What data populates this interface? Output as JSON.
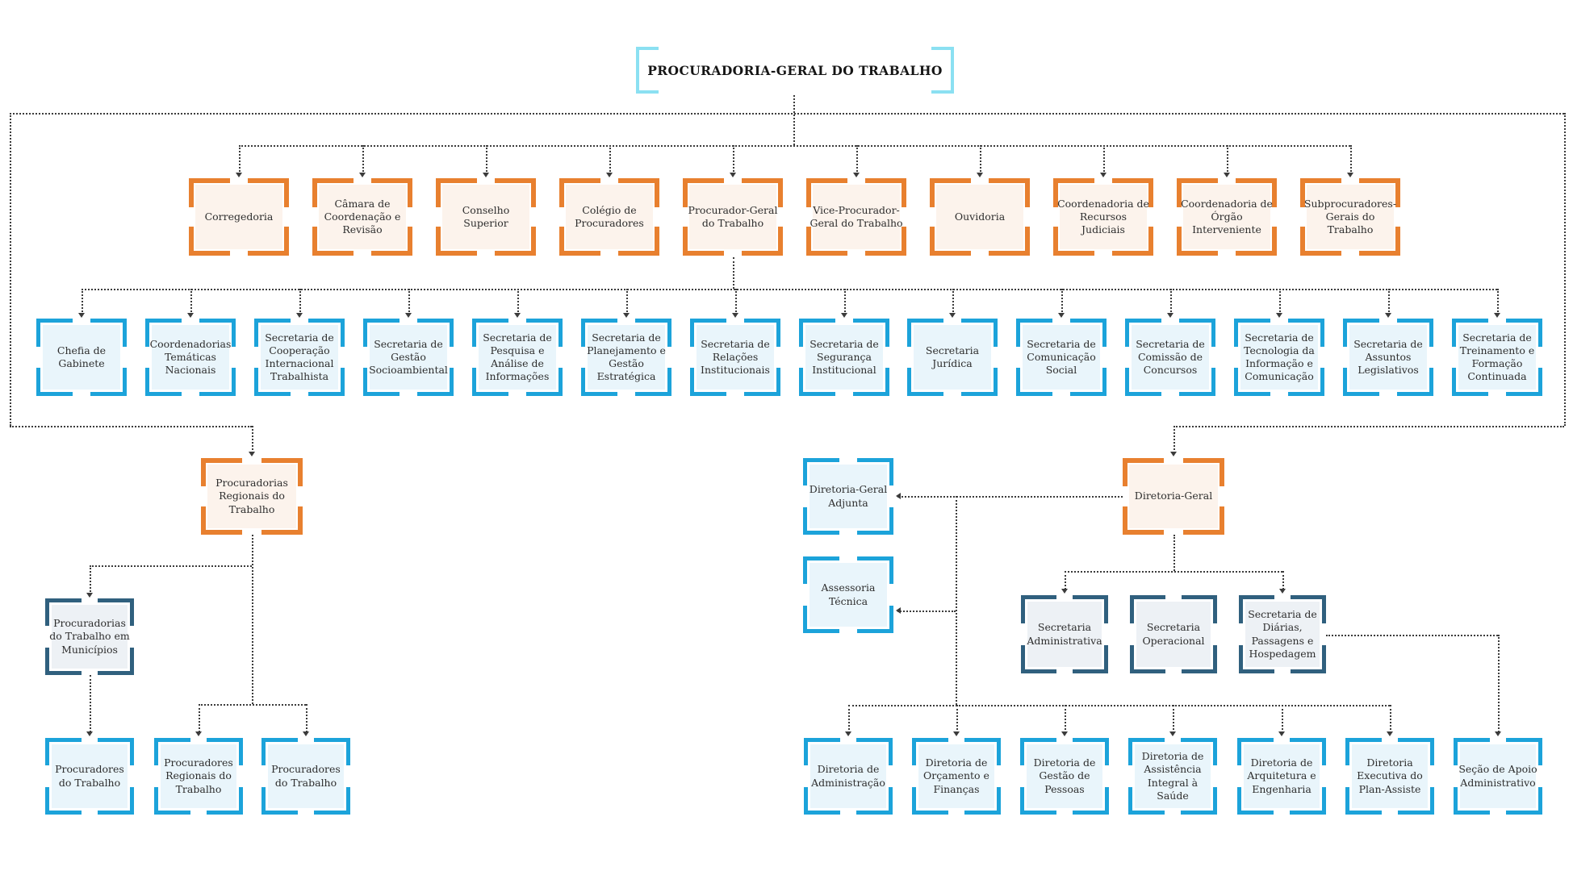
{
  "title": "PROCURADORIA-GERAL DO TRABALHO",
  "colors": {
    "orange": "#E8802F",
    "orange_fill": "#FCF3EC",
    "blue": "#1CA3DA",
    "blue_fill": "#E9F5FB",
    "dark": "#30607E",
    "dark_fill": "#EDF1F5",
    "cyan": "#8BE0F2",
    "line": "#3B3B3B",
    "text": "#2E2E2E"
  },
  "nodes": [
    {
      "id": "corregedoria",
      "style": "orange",
      "label": "Corregedoria"
    },
    {
      "id": "camara-coordenacao-revisao",
      "style": "orange",
      "label": "Câmara de Coordenação e Revisão"
    },
    {
      "id": "conselho-superior",
      "style": "orange",
      "label": "Conselho Superior"
    },
    {
      "id": "colegio-procuradores",
      "style": "orange",
      "label": "Colégio de Procuradores"
    },
    {
      "id": "procurador-geral-trabalho",
      "style": "orange",
      "label": "Procurador-Geral do Trabalho"
    },
    {
      "id": "vice-procurador-geral-trabalho",
      "style": "orange",
      "label": "Vice-Procurador-Geral do Trabalho"
    },
    {
      "id": "ouvidoria",
      "style": "orange",
      "label": "Ouvidoria"
    },
    {
      "id": "coord-recursos-judiciais",
      "style": "orange",
      "label": "Coordenadoria de Recursos Judiciais"
    },
    {
      "id": "coord-orgao-interveniente",
      "style": "orange",
      "label": "Coordenadoria de Órgão Interveniente"
    },
    {
      "id": "subprocuradores-gerais",
      "style": "orange",
      "label": "Subprocuradores-Gerais do Trabalho"
    },
    {
      "id": "chefia-gabinete",
      "style": "blue",
      "label": "Chefia de Gabinete"
    },
    {
      "id": "coordenadorias-tematicas",
      "style": "blue",
      "label": "Coordenadorias Temáticas Nacionais"
    },
    {
      "id": "sec-cooperacao-internacional",
      "style": "blue",
      "label": "Secretaria de Cooperação Internacional Trabalhista"
    },
    {
      "id": "sec-gestao-socioambiental",
      "style": "blue",
      "label": "Secretaria de Gestão Socioambiental"
    },
    {
      "id": "sec-pesquisa-analise",
      "style": "blue",
      "label": "Secretaria de Pesquisa e Análise de Informações"
    },
    {
      "id": "sec-planejamento-gestao",
      "style": "blue",
      "label": "Secretaria de Planejamento e Gestão Estratégica"
    },
    {
      "id": "sec-relacoes-institucionais",
      "style": "blue",
      "label": "Secretaria de Relações Institucionais"
    },
    {
      "id": "sec-seguranca-institucional",
      "style": "blue",
      "label": "Secretaria de Segurança Institucional"
    },
    {
      "id": "sec-juridica",
      "style": "blue",
      "label": "Secretaria Jurídica"
    },
    {
      "id": "sec-comunicacao-social",
      "style": "blue",
      "label": "Secretaria de Comunicação Social"
    },
    {
      "id": "sec-comissao-concursos",
      "style": "blue",
      "label": "Secretaria de Comissão de Concursos"
    },
    {
      "id": "sec-tecnologia-informacao",
      "style": "blue",
      "label": "Secretaria de Tecnologia da Informação e Comunicação"
    },
    {
      "id": "sec-assuntos-legislativos",
      "style": "blue",
      "label": "Secretaria de Assuntos Legislativos"
    },
    {
      "id": "sec-treinamento-formacao",
      "style": "blue",
      "label": "Secretaria de Treinamento e Formação Continuada"
    },
    {
      "id": "procuradorias-regionais",
      "style": "orange",
      "label": "Procuradorias Regionais do Trabalho"
    },
    {
      "id": "procuradorias-municipios",
      "style": "dark",
      "label": "Procuradorias do Trabalho em Municípios"
    },
    {
      "id": "procuradores-trabalho-1",
      "style": "blue",
      "label": "Procuradores do Trabalho"
    },
    {
      "id": "procuradores-regionais",
      "style": "blue",
      "label": "Procuradores Regionais do Trabalho"
    },
    {
      "id": "procuradores-trabalho-2",
      "style": "blue",
      "label": "Procuradores do Trabalho"
    },
    {
      "id": "diretoria-geral-adjunta",
      "style": "blue",
      "label": "Diretoria-Geral Adjunta"
    },
    {
      "id": "diretoria-geral",
      "style": "orange",
      "label": "Diretoria-Geral"
    },
    {
      "id": "assessoria-tecnica",
      "style": "blue",
      "label": "Assessoria Técnica"
    },
    {
      "id": "sec-administrativa",
      "style": "dark",
      "label": "Secretaria Administrativa"
    },
    {
      "id": "sec-operacional",
      "style": "dark",
      "label": "Secretaria Operacional"
    },
    {
      "id": "sec-diarias-passagens",
      "style": "dark",
      "label": "Secretaria de Diárias, Passagens e Hospedagem"
    },
    {
      "id": "dir-administracao",
      "style": "blue",
      "label": "Diretoria de Administração"
    },
    {
      "id": "dir-orcamento-financas",
      "style": "blue",
      "label": "Diretoria de Orçamento e Finanças"
    },
    {
      "id": "dir-gestao-pessoas",
      "style": "blue",
      "label": "Diretoria de Gestão de Pessoas"
    },
    {
      "id": "dir-assistencia-saude",
      "style": "blue",
      "label": "Diretoria de Assistência Integral à Saúde"
    },
    {
      "id": "dir-arquitetura-engenharia",
      "style": "blue",
      "label": "Diretoria de Arquitetura e Engenharia"
    },
    {
      "id": "dir-executiva-plan-assiste",
      "style": "blue",
      "label": "Diretoria Executiva do Plan-Assiste"
    },
    {
      "id": "secao-apoio-administrativo",
      "style": "blue",
      "label": "Seção de Apoio Administrativo"
    }
  ]
}
